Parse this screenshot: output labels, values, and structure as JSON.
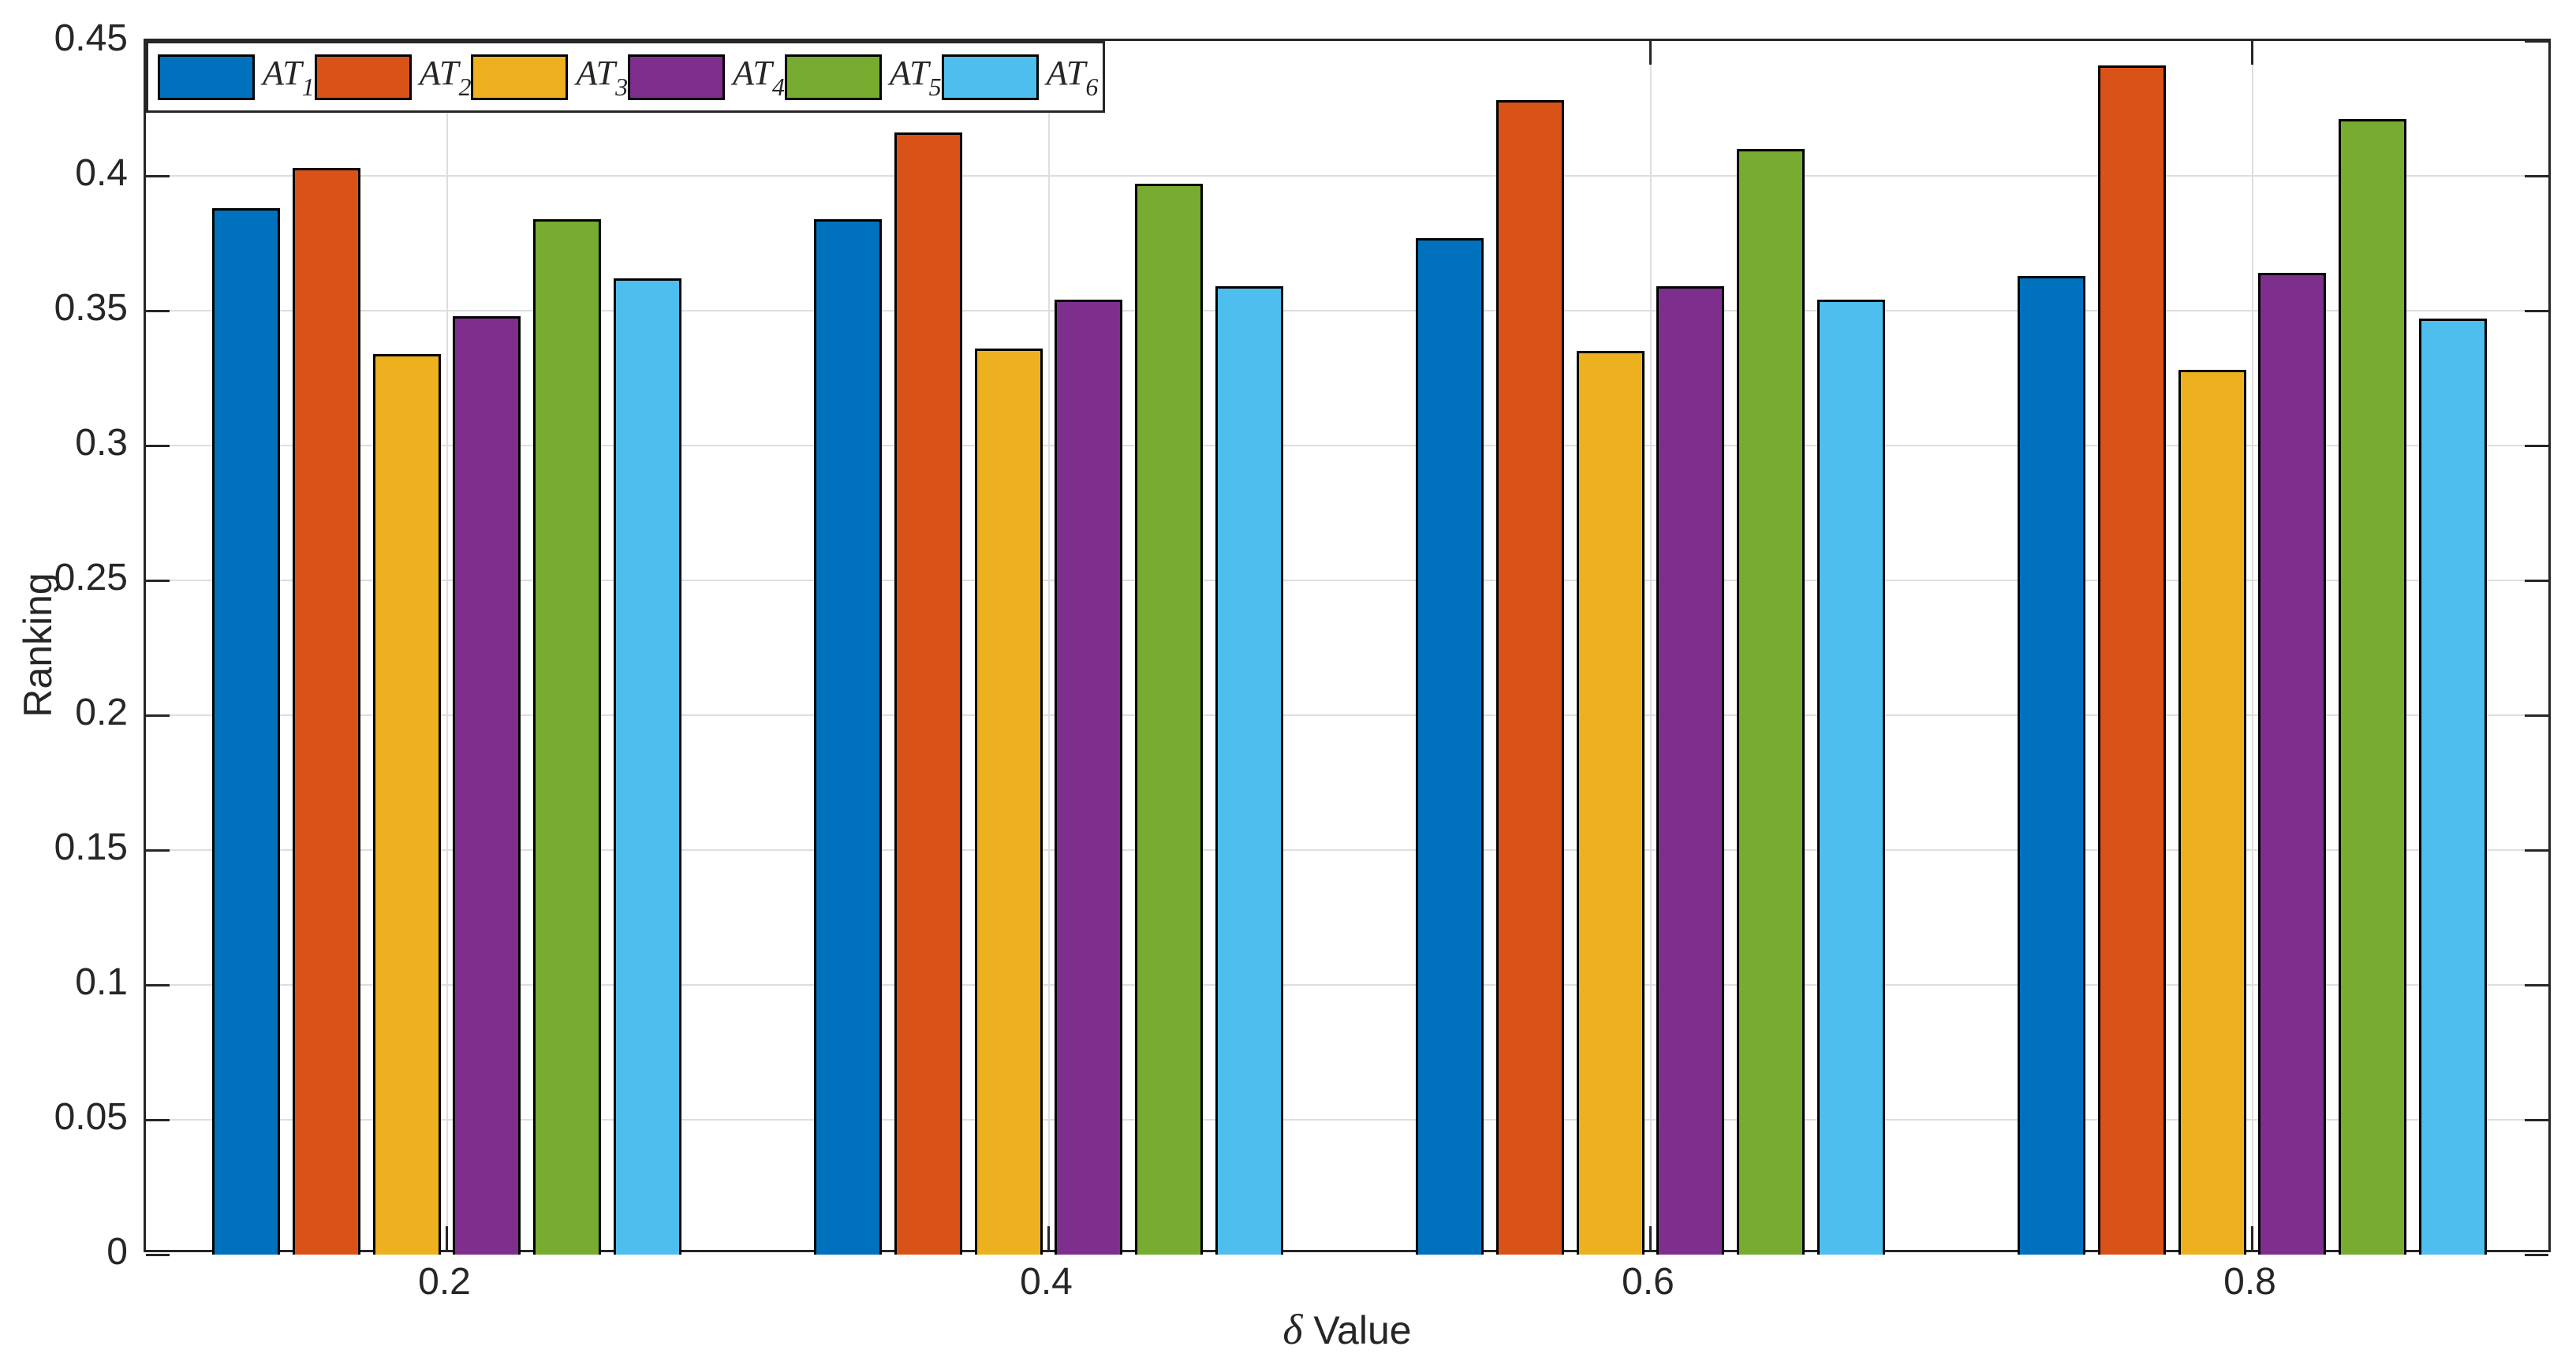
{
  "chart_data": {
    "type": "bar",
    "title": "",
    "xlabel": "δ Value",
    "xlabel_symbol": "δ",
    "xlabel_rest": " Value",
    "ylabel": "Ranking",
    "categories": [
      "0.2",
      "0.4",
      "0.6",
      "0.8"
    ],
    "x_tick_labels": [
      "0.2",
      "0.4",
      "0.6",
      "0.8"
    ],
    "y_tick_labels": [
      "0",
      "0.05",
      "0.1",
      "0.15",
      "0.2",
      "0.25",
      "0.3",
      "0.35",
      "0.4",
      "0.45"
    ],
    "ylim": [
      0,
      0.45
    ],
    "grid": true,
    "legend_position": "top-left-inside",
    "series": [
      {
        "name": "AT",
        "sub": "1",
        "color": "#0072BD",
        "values": [
          0.388,
          0.384,
          0.377,
          0.363
        ]
      },
      {
        "name": "AT",
        "sub": "2",
        "color": "#D95319",
        "values": [
          0.403,
          0.416,
          0.428,
          0.441
        ]
      },
      {
        "name": "AT",
        "sub": "3",
        "color": "#EDB120",
        "values": [
          0.334,
          0.336,
          0.335,
          0.328
        ]
      },
      {
        "name": "AT",
        "sub": "4",
        "color": "#7E2F8E",
        "values": [
          0.348,
          0.354,
          0.359,
          0.364
        ]
      },
      {
        "name": "AT",
        "sub": "5",
        "color": "#77AC30",
        "values": [
          0.384,
          0.397,
          0.41,
          0.421
        ]
      },
      {
        "name": "AT",
        "sub": "6",
        "color": "#4DBEEE",
        "values": [
          0.362,
          0.359,
          0.354,
          0.347
        ]
      }
    ],
    "colors": {
      "axis": "#262626",
      "grid": "#dedede",
      "tick_text": "#262626",
      "bar_edge": "#000000",
      "legend_border": "#262626",
      "legend_bg": "#ffffff",
      "background": "#ffffff"
    }
  }
}
